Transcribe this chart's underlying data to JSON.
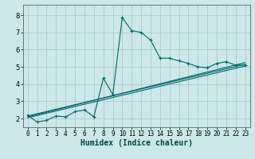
{
  "xlabel": "Humidex (Indice chaleur)",
  "bg_color": "#cce8e8",
  "grid_color": "#aacccc",
  "line_color": "#006666",
  "xlim": [
    -0.5,
    23.5
  ],
  "ylim": [
    1.5,
    8.6
  ],
  "xticks": [
    0,
    1,
    2,
    3,
    4,
    5,
    6,
    7,
    8,
    9,
    10,
    11,
    12,
    13,
    14,
    15,
    16,
    17,
    18,
    19,
    20,
    21,
    22,
    23
  ],
  "yticks": [
    2,
    3,
    4,
    5,
    6,
    7,
    8
  ],
  "main_x": [
    0,
    1,
    2,
    3,
    4,
    5,
    6,
    7,
    8,
    9,
    10,
    11,
    12,
    13,
    14,
    15,
    16,
    17,
    18,
    19,
    20,
    21,
    22,
    23
  ],
  "main_y": [
    2.2,
    1.8,
    1.9,
    2.15,
    2.1,
    2.4,
    2.5,
    2.1,
    4.35,
    3.4,
    7.85,
    7.1,
    7.0,
    6.55,
    5.5,
    5.5,
    5.35,
    5.2,
    5.0,
    4.95,
    5.2,
    5.3,
    5.1,
    5.1
  ],
  "trend_lines": [
    {
      "x": [
        0,
        23
      ],
      "y": [
        2.05,
        5.05
      ]
    },
    {
      "x": [
        0,
        23
      ],
      "y": [
        2.15,
        5.15
      ]
    },
    {
      "x": [
        0,
        23
      ],
      "y": [
        2.1,
        5.25
      ]
    }
  ],
  "xlabel_fontsize": 7,
  "tick_fontsize": 5.5,
  "linewidth": 0.8,
  "markersize": 3.0
}
